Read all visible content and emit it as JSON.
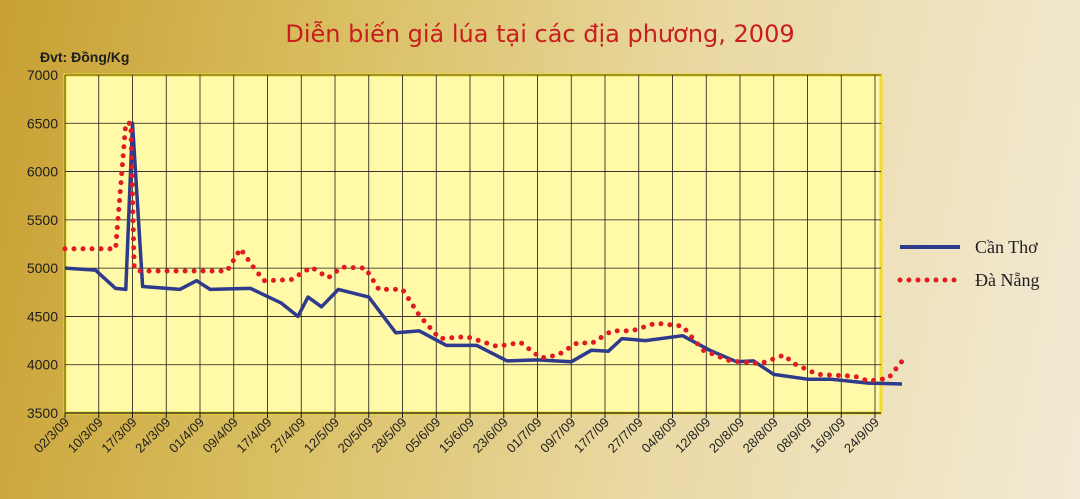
{
  "chart_data": {
    "type": "line",
    "title": "Diễn biến giá lúa tại các địa phương, 2009",
    "ylabel": "Đvt: Đồng/Kg",
    "xlabel": "",
    "ylim": [
      3500,
      7000
    ],
    "yticks": [
      3500,
      4000,
      4500,
      5000,
      5500,
      6000,
      6500,
      7000
    ],
    "xticklabels": [
      "02/3/09",
      "10/3/09",
      "17/3/09",
      "24/3/09",
      "01/4/09",
      "09/4/09",
      "17/4/09",
      "27/4/09",
      "12/5/09",
      "20/5/09",
      "28/5/09",
      "05/6/09",
      "15/6/09",
      "23/6/09",
      "01/7/09",
      "09/7/09",
      "17/7/09",
      "27/7/09",
      "04/8/09",
      "12/8/09",
      "20/8/09",
      "28/8/09",
      "08/9/09",
      "16/9/09",
      "24/9/09"
    ],
    "grid": true,
    "legend": "right",
    "colors": {
      "Cần Thơ": "#2e3a8c",
      "Đà Nẵng": "#e01b24",
      "plot_bg": "#fff9a8",
      "plot_border": "#f2dc2a"
    },
    "series": [
      {
        "name": "Cần Thơ",
        "style": "solid",
        "x": [
          0,
          0.9,
          1.5,
          1.8,
          2.0,
          2.3,
          3.4,
          3.9,
          4.3,
          5.5,
          6.4,
          6.9,
          7.2,
          7.6,
          8.1,
          9.0,
          9.8,
          10.5,
          11.3,
          12.2,
          13.1,
          14.0,
          15.0,
          15.6,
          16.1,
          16.5,
          17.2,
          18.3,
          19.1,
          19.9,
          20.4,
          21.0,
          22.0,
          22.7,
          23.8,
          24.8
        ],
        "values": [
          5000,
          4980,
          4790,
          4780,
          6500,
          4810,
          4780,
          4870,
          4780,
          4790,
          4640,
          4500,
          4700,
          4600,
          4780,
          4700,
          4330,
          4350,
          4200,
          4200,
          4040,
          4050,
          4030,
          4150,
          4140,
          4270,
          4250,
          4300,
          4150,
          4030,
          4040,
          3900,
          3850,
          3850,
          3810,
          3800
        ]
      },
      {
        "name": "Đà Nẵng",
        "style": "dotted",
        "x": [
          0,
          1.0,
          1.5,
          1.8,
          1.95,
          2.05,
          2.2,
          3.0,
          3.9,
          4.8,
          5.2,
          5.6,
          5.9,
          6.7,
          7.3,
          7.8,
          8.2,
          8.9,
          9.3,
          10.0,
          10.5,
          11.1,
          11.9,
          12.8,
          13.5,
          14.1,
          14.6,
          15.2,
          15.6,
          16.2,
          16.8,
          17.5,
          18.3,
          18.9,
          19.7,
          20.6,
          21.3,
          21.6,
          22.3,
          22.8,
          23.4,
          23.8,
          24.4,
          24.9
        ],
        "values": [
          5200,
          5200,
          5200,
          6500,
          6500,
          5000,
          4970,
          4970,
          4970,
          4970,
          5200,
          5000,
          4870,
          4880,
          5010,
          4900,
          5010,
          5000,
          4780,
          4780,
          4510,
          4270,
          4290,
          4190,
          4230,
          4070,
          4100,
          4230,
          4220,
          4350,
          4350,
          4430,
          4400,
          4150,
          4040,
          4010,
          4100,
          4010,
          3900,
          3890,
          3880,
          3830,
          3860,
          4080
        ]
      }
    ]
  }
}
